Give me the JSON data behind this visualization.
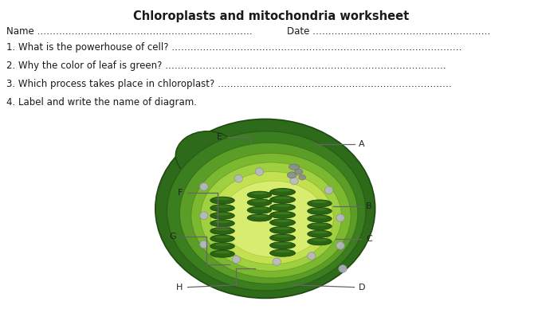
{
  "title": "Chloroplasts and mitochondria worksheet",
  "background_color": "#ffffff",
  "text_color": "#1a1a1a",
  "name_label": "Name",
  "name_dots": " ……………………………………………………………",
  "date_label": "Date",
  "date_dots": " …………………………………………………",
  "q1": "1. What is the powerhouse of cell?",
  "q1_dots": " …………………………………………………………………………………",
  "q2": "2. Why the color of leaf is green?",
  "q2_dots": " ………………………………………………………………………………",
  "q3": "3. Which process takes place in chloroplast?",
  "q3_dots": " …………………………………………………………………",
  "q4": "4. Label and write the name of diagram."
}
